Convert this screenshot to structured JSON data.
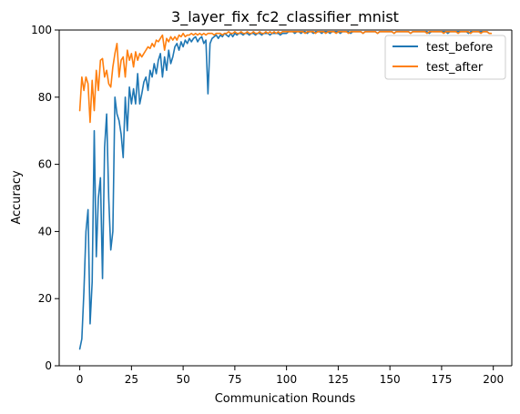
{
  "colors": {
    "test_before": "#1f77b4",
    "test_after": "#ff7f0e"
  },
  "chart_data": {
    "type": "line",
    "title": "3_layer_fix_fc2_classifier_mnist",
    "xlabel": "Communication Rounds",
    "ylabel": "Accuracy",
    "xlim": [
      -9.95,
      208.95
    ],
    "ylim": [
      0,
      100
    ],
    "xticks": [
      0,
      25,
      50,
      75,
      100,
      125,
      150,
      175,
      200
    ],
    "yticks": [
      0,
      20,
      40,
      60,
      80,
      100
    ],
    "grid": false,
    "legend_position": "upper right",
    "series": [
      {
        "name": "test_before",
        "color": "#1f77b4",
        "y": [
          5,
          8,
          22,
          40,
          46.5,
          12.5,
          25,
          70,
          32.5,
          50,
          56,
          26,
          65,
          75,
          50,
          34.5,
          40,
          80,
          75,
          73,
          69,
          62,
          80,
          70,
          83,
          78,
          82.5,
          78,
          87,
          78,
          81,
          84.5,
          86,
          82,
          88,
          86,
          90,
          87,
          91,
          93,
          86,
          92,
          88,
          94,
          90,
          92,
          95,
          96,
          94,
          96.5,
          95,
          97,
          96,
          97.5,
          96.5,
          97.5,
          98,
          96.5,
          97.5,
          98,
          96,
          97,
          81,
          96,
          97.5,
          98,
          98.5,
          97.5,
          98.5,
          98,
          99,
          98.5,
          98,
          99,
          98,
          99,
          98.5,
          99,
          99,
          98.5,
          99,
          99,
          98.5,
          99,
          99,
          98.5,
          99,
          99,
          98.5,
          99,
          99,
          99,
          98.5,
          99,
          99,
          99,
          99,
          98.5,
          99,
          99,
          99,
          99.5,
          99.5,
          99.5,
          99,
          99.5,
          99.5,
          99,
          99.5,
          99.5,
          99,
          99.5,
          99.5,
          99,
          99.5,
          99.5,
          99.5,
          99,
          99.5,
          99.5,
          99.5,
          99,
          99.5,
          99.5,
          99.5,
          99.5,
          99,
          99.5,
          99.5,
          99.5,
          99.5,
          99,
          99.5,
          99.5,
          99.5,
          99.5,
          99.5,
          99,
          99.5,
          99.5,
          99.5,
          99.5,
          99.5,
          99.5,
          99,
          99.5,
          99.5,
          99.5,
          99.5,
          99.5,
          99.5,
          99.5,
          99,
          99.5,
          99.5,
          99.5,
          99.5,
          99.5,
          99.5,
          99.5,
          99,
          99.5,
          99.5,
          99.5,
          99.5,
          99.5,
          99.5,
          99.5,
          99.5,
          99,
          99.5,
          99.5,
          99.5,
          99.5,
          99.5,
          99.5,
          99.5,
          99.5,
          99,
          99.5,
          99.5,
          99.5,
          99.5,
          99.5,
          99.5,
          99.5,
          99.5,
          99.5,
          99,
          99.5,
          99.5,
          99.5,
          99.5,
          99.5,
          99.5,
          99.5,
          99.5,
          99.5,
          99
        ]
      },
      {
        "name": "test_after",
        "color": "#ff7f0e",
        "y": [
          76,
          86,
          82,
          86,
          84,
          72.5,
          85,
          76,
          88,
          82,
          91,
          91.5,
          86,
          88,
          84,
          83,
          89,
          93,
          96,
          86,
          91,
          92,
          86,
          94,
          91,
          93,
          89,
          93.5,
          91,
          93,
          92,
          93,
          94,
          95,
          94.5,
          96,
          95,
          97,
          96.5,
          97.5,
          98.5,
          94,
          97.5,
          96.5,
          98,
          97,
          98,
          97,
          98.5,
          98,
          99,
          98,
          98.5,
          98.5,
          99,
          98.5,
          99,
          98.5,
          99,
          98.5,
          99,
          98.5,
          99,
          99,
          99,
          98.5,
          99,
          99,
          99,
          98.5,
          99,
          99,
          99.5,
          99,
          99,
          99.5,
          99,
          99,
          99.5,
          99,
          99,
          99.5,
          99,
          99,
          99.5,
          99,
          99,
          99.5,
          99,
          99,
          99.5,
          99,
          99.5,
          99,
          99.5,
          99,
          99.5,
          99,
          99.5,
          99.5,
          99.5,
          99.5,
          99.5,
          99.5,
          99.5,
          99.5,
          99.5,
          99.5,
          99.5,
          99,
          99.5,
          99.5,
          99.5,
          99.5,
          99,
          99.5,
          99.5,
          99.5,
          99.5,
          99,
          99.5,
          99.5,
          99.5,
          99.5,
          99,
          99.5,
          99.5,
          99.5,
          99.5,
          99.5,
          99,
          99.5,
          99.5,
          99.5,
          99.5,
          99.5,
          99.5,
          99,
          99.5,
          99.5,
          99.5,
          99.5,
          99.5,
          99.5,
          99,
          99.5,
          99.5,
          99.5,
          99.5,
          99.5,
          99.5,
          99.5,
          99,
          99.5,
          99.5,
          99.5,
          99.5,
          99.5,
          99.5,
          99.5,
          99,
          99.5,
          99.5,
          99.5,
          99.5,
          99.5,
          99.5,
          99.5,
          99,
          99.5,
          99.5,
          99.5,
          99.5,
          99.5,
          99.5,
          99.5,
          99,
          99.5,
          99.5,
          99.5,
          99.5,
          99.5,
          99.5,
          99,
          99.5,
          99.5,
          99.5,
          99.5,
          99.5,
          99,
          99.5,
          99.5,
          99.5,
          99.5,
          99,
          99.5,
          99.5,
          99.5,
          99,
          99
        ]
      }
    ]
  }
}
